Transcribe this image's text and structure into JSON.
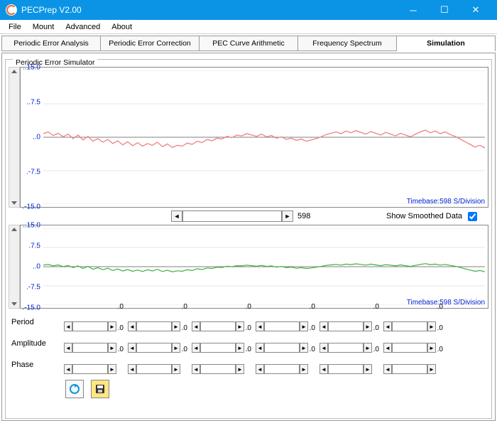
{
  "window": {
    "title": "PECPrep V2.00"
  },
  "menu": {
    "file": "File",
    "mount": "Mount",
    "advanced": "Advanced",
    "about": "About"
  },
  "tabs": {
    "items": [
      {
        "label": "Periodic Error Analysis"
      },
      {
        "label": "Periodic Error Correction"
      },
      {
        "label": "PEC Curve Arithmetic"
      },
      {
        "label": "Frequency Spectrum"
      },
      {
        "label": "Simulation"
      }
    ],
    "active": 4
  },
  "fieldset": {
    "title": "Periodic Error Simulator"
  },
  "chart1": {
    "type": "line",
    "ylim": [
      -15,
      15
    ],
    "yticks": [
      -15.0,
      -7.5,
      0,
      7.5,
      15.0
    ],
    "ytick_labels": [
      ".-15.0",
      ".-7.5",
      "..0",
      "..7.5",
      "..15.0"
    ],
    "series_color": "#f08080",
    "axis_color": "#808080",
    "grid_color": "#e4e4e4",
    "text_color": "#0020d0",
    "background_color": "#ffffff",
    "timebase_label": "Timebase:598 S/Division",
    "data": [
      0.8,
      1.2,
      0.4,
      0.9,
      0.1,
      0.7,
      -0.3,
      0.5,
      -0.6,
      0.2,
      -0.9,
      -0.3,
      -1.1,
      -0.5,
      -1.4,
      -0.8,
      -1.7,
      -1.0,
      -1.9,
      -1.2,
      -2.0,
      -1.4,
      -1.8,
      -1.1,
      -2.1,
      -1.5,
      -2.3,
      -1.8,
      -2.0,
      -1.3,
      -1.6,
      -0.9,
      -1.2,
      -0.5,
      -0.8,
      -0.2,
      -0.4,
      0.2,
      -0.1,
      0.5,
      0.3,
      0.8,
      0.5,
      0.2,
      0.7,
      0.1,
      0.4,
      -0.2,
      0.1,
      -0.5,
      -0.2,
      -0.7,
      -0.4,
      -0.9,
      -0.6,
      -0.3,
      0.1,
      0.6,
      0.9,
      1.2,
      0.8,
      1.4,
      1.0,
      1.5,
      1.1,
      0.7,
      1.3,
      0.9,
      0.5,
      1.1,
      0.7,
      0.3,
      0.9,
      0.5,
      0.1,
      0.7,
      1.2,
      1.6,
      1.0,
      1.4,
      0.8,
      1.2,
      0.6,
      0.2,
      -0.4,
      -1.0,
      -1.6,
      -2.2,
      -1.8,
      -2.4
    ]
  },
  "hscroll": {
    "value": "598"
  },
  "smooth": {
    "label": "Show Smoothed Data",
    "checked": true
  },
  "chart2": {
    "type": "line",
    "ylim": [
      -15,
      15
    ],
    "yticks": [
      -15.0,
      -7.5,
      0,
      7.5,
      15.0
    ],
    "ytick_labels": [
      ".-15.0",
      ".-7.5",
      "..0",
      ".7.5",
      "..15.0"
    ],
    "series_color": "#3cb043",
    "axis_color": "#808080",
    "grid_color": "#e4e4e4",
    "text_color": "#0020d0",
    "background_color": "#ffffff",
    "timebase_label": "Timebase:598 S/Division",
    "data": [
      0.6,
      0.9,
      0.3,
      0.7,
      0.0,
      0.5,
      -0.4,
      0.3,
      -0.7,
      0.1,
      -1.0,
      -0.4,
      -1.2,
      -0.6,
      -1.5,
      -0.9,
      -1.7,
      -1.1,
      -1.8,
      -1.3,
      -1.9,
      -1.2,
      -1.7,
      -1.0,
      -1.9,
      -1.4,
      -2.0,
      -1.6,
      -1.8,
      -1.2,
      -1.5,
      -0.8,
      -1.1,
      -0.5,
      -0.7,
      -0.2,
      -0.3,
      0.2,
      0.0,
      0.4,
      0.3,
      0.6,
      0.4,
      0.2,
      0.5,
      0.1,
      0.3,
      -0.2,
      0.1,
      -0.4,
      -0.2,
      -0.6,
      -0.4,
      -0.7,
      -0.5,
      -0.2,
      0.1,
      0.5,
      0.7,
      0.9,
      0.6,
      1.0,
      0.8,
      1.1,
      0.9,
      0.6,
      1.0,
      0.7,
      0.4,
      0.8,
      0.6,
      0.3,
      0.7,
      0.4,
      0.1,
      0.5,
      0.9,
      1.2,
      0.8,
      1.0,
      0.6,
      0.9,
      0.5,
      0.2,
      -0.3,
      -0.8,
      -1.3,
      -1.8,
      -1.5,
      -2.0
    ]
  },
  "params": {
    "rows": [
      {
        "label": "Period"
      },
      {
        "label": "Amplitude"
      },
      {
        "label": "Phase"
      }
    ],
    "cols": 6,
    "defaultValue": ".0"
  },
  "icons": {
    "refresh": "↻",
    "save": "💾"
  },
  "colors": {
    "titlebar": "#0b94e6"
  }
}
